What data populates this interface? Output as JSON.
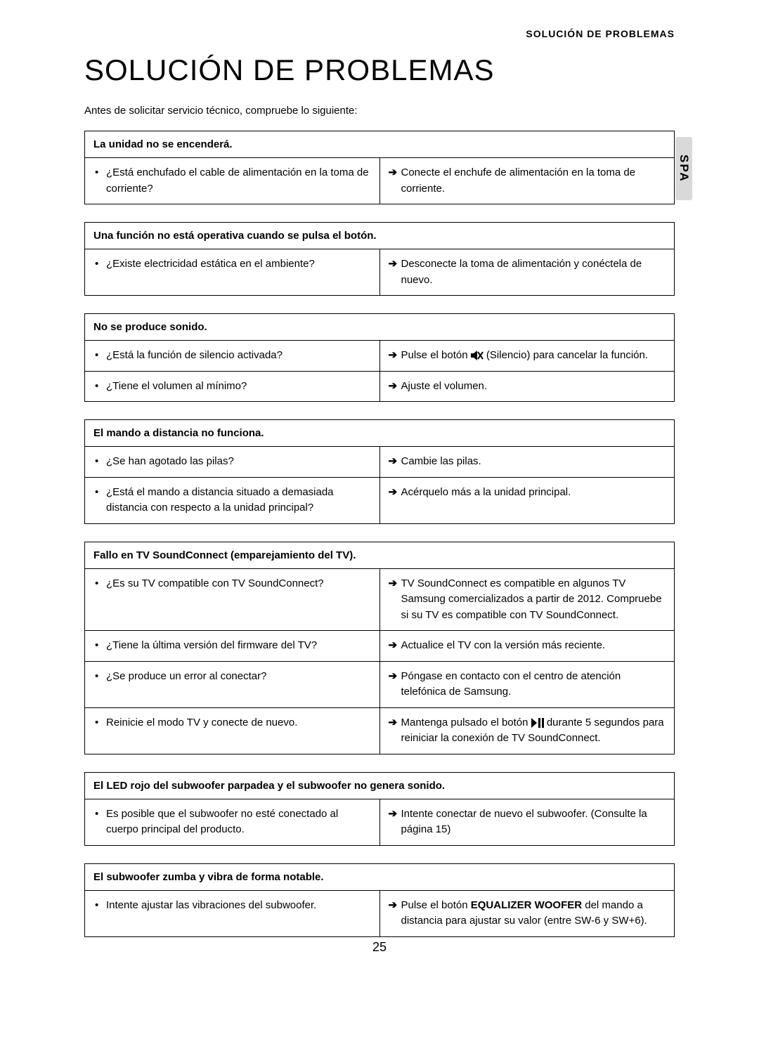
{
  "breadcrumb": "SOLUCIÓN DE PROBLEMAS",
  "title": "SOLUCIÓN DE PROBLEMAS",
  "intro": "Antes de solicitar servicio técnico, compruebe lo siguiente:",
  "side_tab": "SPA",
  "page_number": "25",
  "problems": [
    {
      "heading": "La unidad no se encenderá.",
      "rows": [
        {
          "q": [
            "¿Está enchufado el cable de alimentación en la toma de corriente?"
          ],
          "a": [
            {
              "type": "text",
              "pre": "",
              "text": "Conecte el enchufe de alimentación en la toma de corriente."
            }
          ]
        }
      ]
    },
    {
      "heading": "Una función no está operativa cuando se pulsa el botón.",
      "rows": [
        {
          "q": [
            "¿Existe electricidad estática en el ambiente?"
          ],
          "a": [
            {
              "type": "text",
              "text": "Desconecte la toma de alimentación y conéctela de nuevo."
            }
          ]
        }
      ]
    },
    {
      "heading": "No se produce sonido.",
      "rows": [
        {
          "q": [
            "¿Está la función de silencio activada?"
          ],
          "a": [
            {
              "type": "mute",
              "text_before": "Pulse el botón ",
              "text_after": " (Silencio) para cancelar la función."
            }
          ]
        },
        {
          "q": [
            "¿Tiene el volumen al mínimo?"
          ],
          "a": [
            {
              "type": "text",
              "text": "Ajuste el volumen."
            }
          ],
          "merge_top": true
        }
      ]
    },
    {
      "heading": "El mando a distancia no funciona.",
      "rows": [
        {
          "q": [
            "¿Se han agotado las pilas?"
          ],
          "a": [
            {
              "type": "text",
              "text": "Cambie las pilas."
            }
          ]
        },
        {
          "q": [
            "¿Está el mando a distancia situado a demasiada distancia con respecto a la unidad principal?"
          ],
          "a": [
            {
              "type": "text",
              "text": "Acérquelo más a la unidad principal."
            }
          ],
          "merge_top": true
        }
      ]
    },
    {
      "heading": "Fallo en TV SoundConnect (emparejamiento del TV).",
      "rows": [
        {
          "q": [
            "¿Es su TV compatible con TV SoundConnect?"
          ],
          "a": [
            {
              "type": "text",
              "text": "TV SoundConnect es compatible en algunos TV Samsung comercializados a partir de 2012. Compruebe si su TV es compatible con TV SoundConnect."
            }
          ]
        },
        {
          "q": [
            "¿Tiene la última versión del firmware del TV?"
          ],
          "a": [
            {
              "type": "text",
              "text": "Actualice el TV con la versión más reciente."
            }
          ],
          "merge_top": true
        },
        {
          "q": [
            "¿Se produce un error al conectar?"
          ],
          "a": [
            {
              "type": "text",
              "text": "Póngase en contacto con el centro de atención telefónica de Samsung."
            }
          ],
          "merge_top": true
        },
        {
          "q": [
            "Reinicie el modo TV y conecte de nuevo."
          ],
          "a": [
            {
              "type": "playpause",
              "text_before": "Mantenga pulsado el botón ",
              "text_after": " durante 5 segundos para reiniciar la conexión de TV SoundConnect."
            }
          ],
          "merge_top": true
        }
      ]
    },
    {
      "heading": "El LED rojo del subwoofer parpadea y el subwoofer no genera sonido.",
      "rows": [
        {
          "q": [
            "Es posible que el subwoofer no esté conectado al cuerpo principal del producto."
          ],
          "a": [
            {
              "type": "text",
              "text": "Intente conectar de nuevo el subwoofer. (Consulte la página 15)"
            }
          ]
        }
      ]
    },
    {
      "heading": "El subwoofer zumba y vibra de forma notable.",
      "rows": [
        {
          "q": [
            "Intente ajustar las vibraciones del subwoofer."
          ],
          "a": [
            {
              "type": "bold",
              "text_before": "Pulse el botón ",
              "bold": "EQUALIZER WOOFER",
              "text_after": " del mando a distancia para ajustar su valor (entre SW-6 y SW+6)."
            }
          ]
        }
      ]
    }
  ]
}
